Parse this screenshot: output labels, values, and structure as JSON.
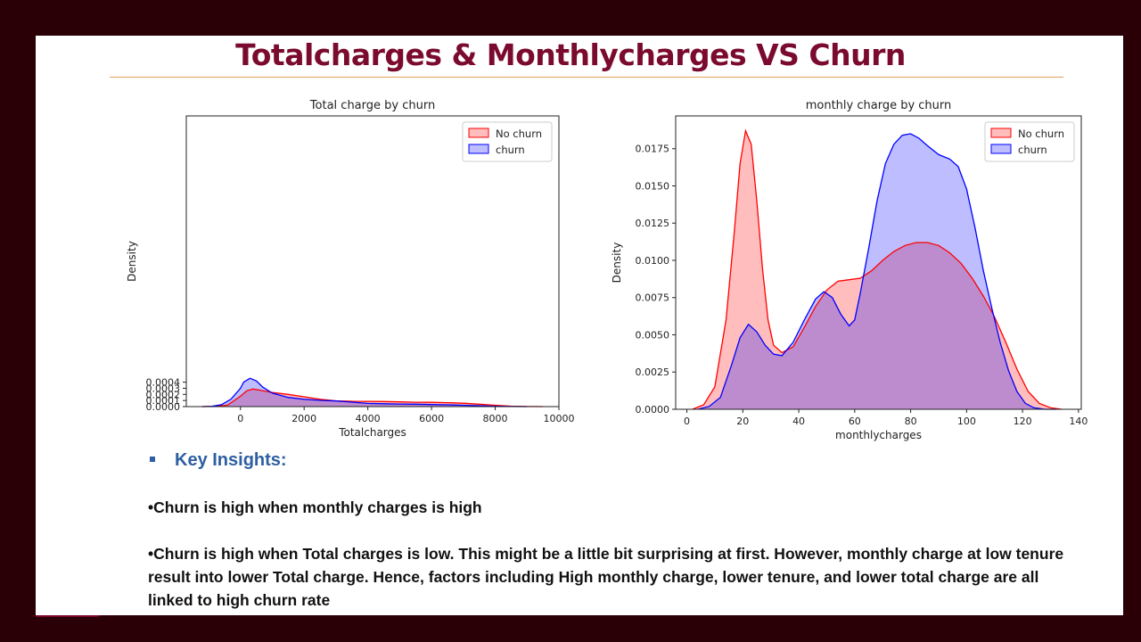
{
  "slide": {
    "title": "Totalcharges & Monthlycharges VS Churn",
    "insights_heading": "Key Insights:",
    "insights": [
      "•Churn is high when monthly charges is high",
      "•Churn is high when Total charges is low. This might be a little bit surprising  at first. However, monthly charge at low tenure result into lower Total charge. Hence, factors including High monthly charge, lower tenure, and lower total charge are all linked to high churn rate"
    ]
  },
  "colors": {
    "no_churn": "#ff0000",
    "churn": "#0000ff",
    "title": "#7a0a2e",
    "accent": "#7b0328"
  },
  "chart_data": [
    {
      "type": "area",
      "title": "Total charge by churn",
      "xlabel": "Totalcharges",
      "ylabel": "Density",
      "xlim": [
        -1700,
        10000
      ],
      "ylim": [
        0,
        0.00476
      ],
      "xticks": [
        0,
        2000,
        4000,
        6000,
        8000,
        10000
      ],
      "yticks": [
        0.0,
        0.0001,
        0.0002,
        0.0003,
        0.0004
      ],
      "ytick_labels": [
        "0.0000",
        "0.0001",
        "0.0002",
        "0.0003",
        "0.0004"
      ],
      "legend": "top-right",
      "series": [
        {
          "name": "No churn",
          "x": [
            -1200,
            -800,
            -400,
            0,
            200,
            400,
            600,
            800,
            1000,
            1500,
            2000,
            2500,
            3000,
            3500,
            4000,
            4500,
            5000,
            5500,
            6000,
            6500,
            7000,
            7500,
            8000,
            8500,
            9000,
            9500
          ],
          "y": [
            0.0,
            3e-06,
            2.5e-05,
            0.00017,
            0.00026,
            0.000287,
            0.00027,
            0.00025,
            0.00023,
            0.0002,
            0.00016,
            0.00012,
            9.5e-05,
            8.8e-05,
            8.6e-05,
            8.3e-05,
            7.7e-05,
            7.2e-05,
            7e-05,
            6.4e-05,
            5.5e-05,
            4e-05,
            2.2e-05,
            8e-06,
            2e-06,
            0.0
          ]
        },
        {
          "name": "churn",
          "x": [
            -1200,
            -900,
            -600,
            -300,
            0,
            100,
            300,
            500,
            700,
            1000,
            1500,
            2000,
            2500,
            3000,
            3500,
            4000,
            4500,
            5000,
            5500,
            6000,
            6500,
            7000,
            7500,
            8000,
            8500,
            9000
          ],
          "y": [
            0.0,
            5e-06,
            3e-05,
            0.00012,
            0.0003,
            0.0004,
            0.000465,
            0.00042,
            0.00032,
            0.00022,
            0.00015,
            0.00012,
            0.000102,
            9.2e-05,
            7.3e-05,
            5.3e-05,
            4.7e-05,
            4.3e-05,
            3.9e-05,
            3.4e-05,
            2.9e-05,
            2.2e-05,
            1.4e-05,
            6e-06,
            2e-06,
            0.0
          ]
        }
      ]
    },
    {
      "type": "area",
      "title": "monthly charge by churn",
      "xlabel": "monthlycharges",
      "ylabel": "Density",
      "xlim": [
        -4,
        141
      ],
      "ylim": [
        0,
        0.0197
      ],
      "xticks": [
        0,
        20,
        40,
        60,
        80,
        100,
        120,
        140
      ],
      "yticks": [
        0.0,
        0.0025,
        0.005,
        0.0075,
        0.01,
        0.0125,
        0.015,
        0.0175
      ],
      "ytick_labels": [
        "0.0000",
        "0.0025",
        "0.0050",
        "0.0075",
        "0.0100",
        "0.0125",
        "0.0150",
        "0.0175"
      ],
      "legend": "top-right",
      "series": [
        {
          "name": "No churn",
          "x": [
            2,
            6,
            10,
            14,
            17,
            19,
            21,
            23,
            25,
            27,
            29,
            31,
            34,
            38,
            42,
            46,
            50,
            54,
            58,
            62,
            66,
            70,
            74,
            78,
            82,
            86,
            90,
            94,
            98,
            102,
            106,
            110,
            114,
            118,
            122,
            126,
            130,
            134
          ],
          "y": [
            0.0,
            0.0003,
            0.0015,
            0.006,
            0.012,
            0.0165,
            0.0187,
            0.0178,
            0.014,
            0.0095,
            0.006,
            0.0043,
            0.0038,
            0.0042,
            0.0055,
            0.0069,
            0.008,
            0.0086,
            0.0087,
            0.0088,
            0.0093,
            0.01,
            0.0106,
            0.011,
            0.0112,
            0.0112,
            0.011,
            0.0105,
            0.0098,
            0.0088,
            0.0076,
            0.0062,
            0.0045,
            0.0027,
            0.0012,
            0.0004,
            0.0001,
            0.0
          ]
        },
        {
          "name": "churn",
          "x": [
            4,
            8,
            12,
            16,
            19,
            22,
            25,
            28,
            31,
            34,
            38,
            42,
            46,
            49,
            52,
            55,
            58,
            60,
            62,
            65,
            68,
            71,
            74,
            77,
            80,
            83,
            86,
            90,
            94,
            97,
            100,
            103,
            106,
            109,
            112,
            115,
            118,
            121,
            124,
            128,
            132
          ],
          "y": [
            0.0,
            0.0002,
            0.0008,
            0.003,
            0.0048,
            0.0057,
            0.0052,
            0.0043,
            0.0037,
            0.0036,
            0.0045,
            0.006,
            0.0074,
            0.0079,
            0.0075,
            0.0064,
            0.0056,
            0.006,
            0.0078,
            0.0108,
            0.014,
            0.0165,
            0.0178,
            0.0184,
            0.0185,
            0.0182,
            0.0177,
            0.0171,
            0.0168,
            0.0163,
            0.0148,
            0.0122,
            0.0093,
            0.0068,
            0.0045,
            0.0026,
            0.0012,
            0.0004,
            0.0001,
            0.0,
            0.0
          ]
        }
      ]
    }
  ]
}
